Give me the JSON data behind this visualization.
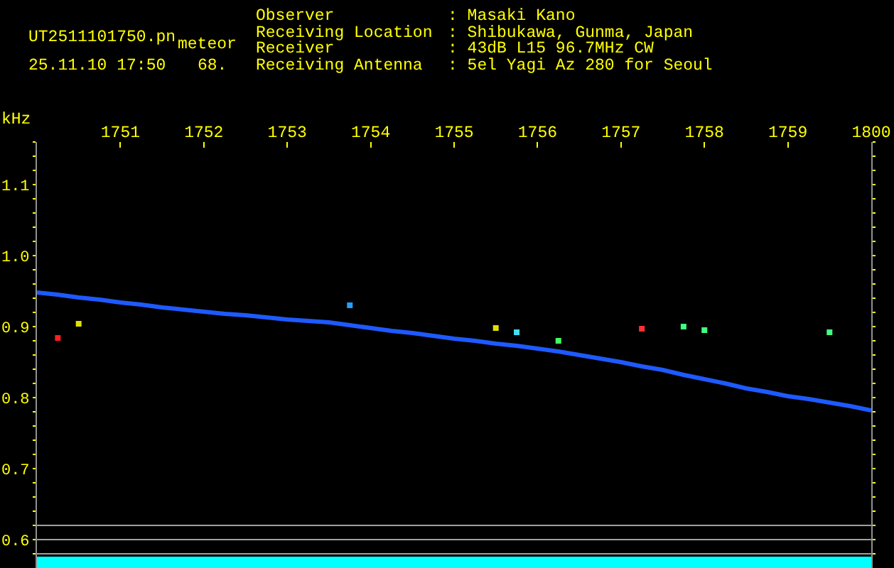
{
  "chart_data": {
    "type": "line",
    "ylabel": "kHz",
    "annotations": [
      "UT2511101750.pn",
      "meteor",
      "25.11.10 17:50",
      "68.",
      "Observer",
      "Receiving Location",
      "Receiver",
      "Receiving Antenna",
      ": Masaki Kano",
      ": Shibukawa, Gunma, Japan",
      ": 43dB L15 96.7MHz CW",
      ": 5el Yagi Az 280 for Seoul"
    ],
    "categories": [
      null,
      null,
      null,
      null,
      "1751",
      null,
      null,
      null,
      "1752",
      null,
      null,
      null,
      "1753",
      null,
      null,
      null,
      "1754",
      null,
      null,
      null,
      "1755",
      null,
      null,
      null,
      "1756",
      null,
      null,
      null,
      "1757",
      null,
      null,
      null,
      "1758",
      null,
      null,
      null,
      "1759",
      null,
      null,
      null,
      "1800"
    ],
    "ylim": [
      0.56,
      1.16
    ],
    "yticks": [
      {
        "value": 0.58,
        "label": null
      },
      0.6,
      {
        "value": 0.62,
        "label": null
      },
      {
        "value": 0.64,
        "label": null
      },
      {
        "value": 0.66,
        "label": null
      },
      {
        "value": 0.68,
        "label": null
      },
      0.7,
      {
        "value": 0.72,
        "label": null
      },
      {
        "value": 0.74,
        "label": null
      },
      {
        "value": 0.76,
        "label": null
      },
      {
        "value": 0.78,
        "label": null
      },
      0.8,
      {
        "value": 0.82,
        "label": null
      },
      {
        "value": 0.84,
        "label": null
      },
      {
        "value": 0.86,
        "label": null
      },
      {
        "value": 0.88,
        "label": null
      },
      0.9,
      {
        "value": 0.92,
        "label": null
      },
      {
        "value": 0.94,
        "label": null
      },
      {
        "value": 0.96,
        "label": null
      },
      {
        "value": 0.98,
        "label": null
      },
      {
        "value": 1,
        "label": "1.0"
      },
      {
        "value": 1.02,
        "label": null
      },
      {
        "value": 1.04,
        "label": null
      },
      {
        "value": 1.06,
        "label": null
      },
      {
        "value": 1.08,
        "label": null
      },
      1.1,
      {
        "value": 1.12,
        "label": null
      },
      {
        "value": 1.14,
        "label": null
      },
      {
        "value": 1.16,
        "label": null
      }
    ],
    "series": [
      {
        "color": "#1e5aff",
        "values": [
          0.948,
          0.945,
          0.941,
          0.938,
          0.934,
          0.931,
          0.927,
          0.924,
          0.921,
          0.918,
          0.916,
          0.913,
          0.91,
          0.908,
          0.906,
          0.902,
          0.898,
          0.894,
          0.891,
          0.887,
          0.883,
          0.88,
          0.876,
          0.873,
          0.869,
          0.865,
          0.86,
          0.855,
          0.85,
          0.844,
          0.839,
          0.832,
          0.826,
          0.82,
          0.813,
          0.808,
          0.802,
          0.798,
          0.793,
          0.788,
          0.782
        ]
      },
      {
        "type": "scatter",
        "marker": "square",
        "colors": [
          null,
          "#ff2020",
          "#e0e000",
          null,
          null,
          null,
          null,
          null,
          null,
          null,
          null,
          null,
          null,
          null,
          null,
          "#20a0ff",
          null,
          null,
          null,
          null,
          null,
          null,
          "#e0e000",
          "#40e0ff",
          null,
          "#40ff60",
          null,
          null,
          null,
          "#ff3030",
          null,
          "#40ff80",
          "#40ff80",
          null,
          null,
          null,
          null,
          null,
          "#40ff80",
          null,
          null
        ],
        "values": [
          null,
          0.884,
          0.904,
          null,
          null,
          null,
          null,
          null,
          null,
          null,
          null,
          null,
          null,
          null,
          null,
          0.93,
          null,
          null,
          null,
          null,
          null,
          null,
          0.898,
          0.892,
          null,
          0.88,
          null,
          null,
          null,
          0.897,
          null,
          0.9,
          0.895,
          null,
          null,
          null,
          null,
          null,
          0.892,
          null,
          null
        ]
      }
    ],
    "ref_lines": [
      {
        "axis": "y",
        "value": 0.62,
        "color": "#a0a0a0"
      },
      {
        "axis": "y",
        "value": 0.6,
        "color": "#a0a0a0"
      },
      {
        "axis": "y",
        "value": 0.58,
        "color": "#a0a0a0"
      }
    ],
    "bands": [
      {
        "axis": "y",
        "from": 0.56,
        "to": 0.576,
        "color": "#00ffff"
      }
    ]
  }
}
